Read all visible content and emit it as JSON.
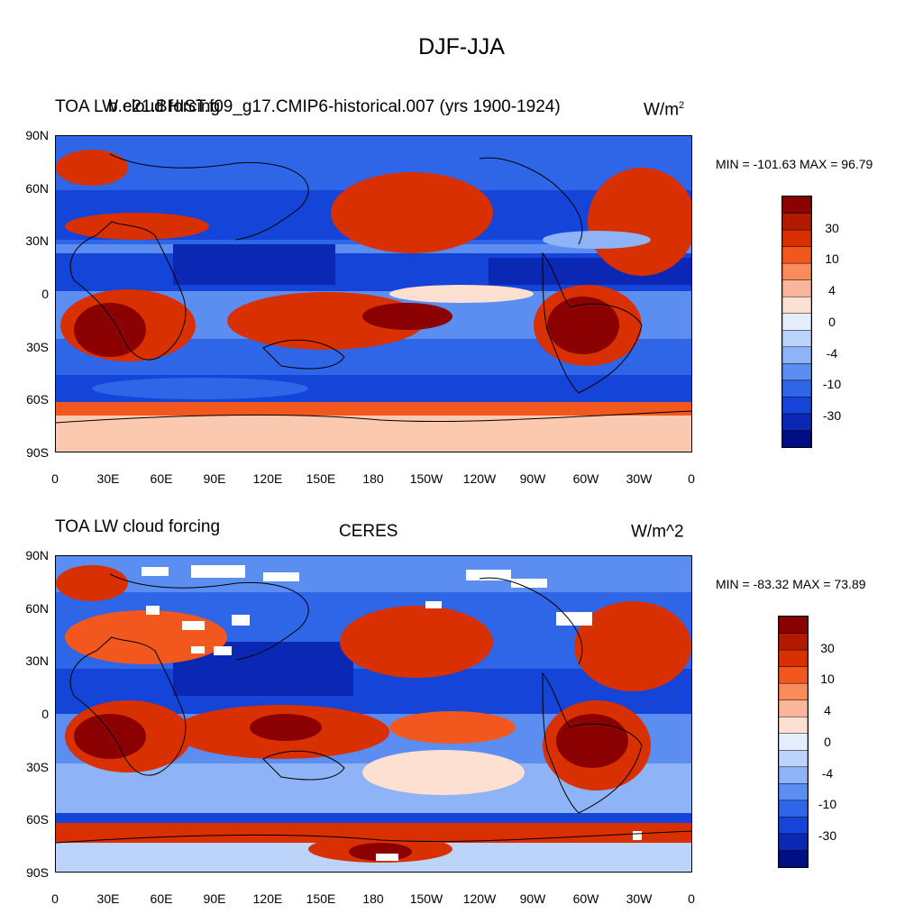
{
  "figure_title": "DJF-JJA",
  "panels": [
    {
      "left_title": "TOA LW cloud forcing",
      "center_title": "b.e21.BHIST.f09_g17.CMIP6-historical.007 (yrs 1900-1924)",
      "units_main": "W/m",
      "units_sup": "2",
      "minmax": "MIN = -101.63 MAX =  96.79"
    },
    {
      "left_title": "TOA LW cloud forcing",
      "center_title": "CERES",
      "units_main": "W/m^2",
      "units_sup": "",
      "minmax": "MIN = -83.32 MAX =  73.89"
    }
  ],
  "lat_labels": [
    "90N",
    "60N",
    "30N",
    "0",
    "30S",
    "60S",
    "90S"
  ],
  "lon_labels": [
    "0",
    "30E",
    "60E",
    "90E",
    "120E",
    "150E",
    "180",
    "150W",
    "120W",
    "90W",
    "60W",
    "30W",
    "0"
  ],
  "colorbar": {
    "labels": [
      "30",
      "10",
      "4",
      "0",
      "-4",
      "-10",
      "-30"
    ],
    "colors": [
      "#8b0000",
      "#b21a00",
      "#d93000",
      "#f2581e",
      "#f98c5a",
      "#fbb59a",
      "#fde0d2",
      "#e4eefc",
      "#bcd3fa",
      "#8fb3f7",
      "#5c8ef1",
      "#2f66e8",
      "#1444d8",
      "#0a28b4",
      "#000e86"
    ]
  },
  "colors": {
    "strong_red": "#b21a00",
    "dark_red": "#8b0000",
    "strong_blue": "#1444d8",
    "dark_blue": "#0a28b4",
    "pale_red": "#fbc9b0",
    "pale_blue": "#bcd3fa"
  }
}
